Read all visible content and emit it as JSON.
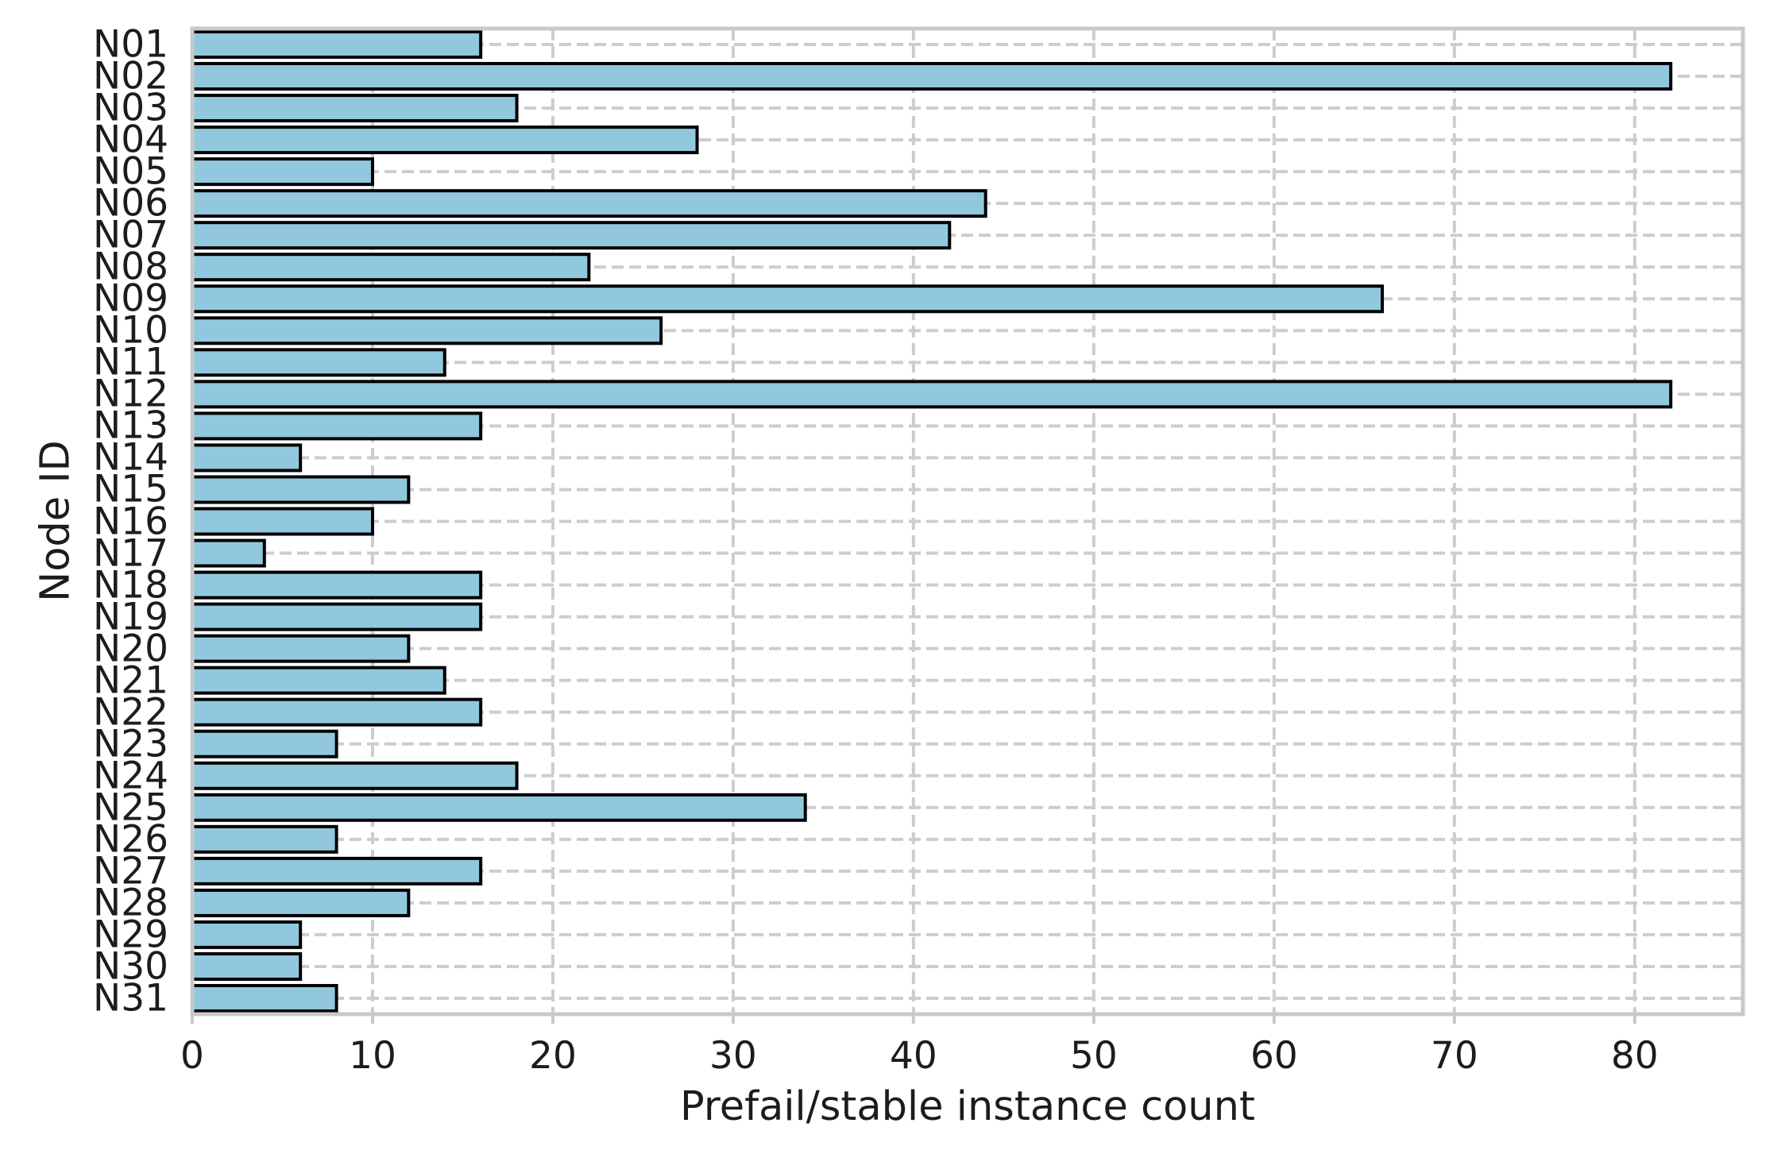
{
  "chart_data": {
    "type": "bar",
    "orientation": "horizontal",
    "title": "",
    "xlabel": "Prefail/stable instance count",
    "ylabel": "Node ID",
    "categories": [
      "N01",
      "N02",
      "N03",
      "N04",
      "N05",
      "N06",
      "N07",
      "N08",
      "N09",
      "N10",
      "N11",
      "N12",
      "N13",
      "N14",
      "N15",
      "N16",
      "N17",
      "N18",
      "N19",
      "N20",
      "N21",
      "N22",
      "N23",
      "N24",
      "N25",
      "N26",
      "N27",
      "N28",
      "N29",
      "N30",
      "N31"
    ],
    "values": [
      16,
      82,
      18,
      28,
      10,
      44,
      42,
      22,
      66,
      26,
      14,
      82,
      16,
      6,
      12,
      10,
      4,
      16,
      16,
      12,
      14,
      16,
      8,
      18,
      34,
      8,
      16,
      12,
      6,
      6,
      8
    ],
    "xticks": [
      0,
      10,
      20,
      30,
      40,
      50,
      60,
      70,
      80
    ],
    "xlim": [
      0,
      86
    ],
    "grid": "dashed-both-axes",
    "legend_position": "none",
    "colors": {
      "background": "#ffffff",
      "bar_fill": "#92c8de",
      "bar_edge": "#000000",
      "grid": "#cdcdcd",
      "spine": "#c9c9c9",
      "text": "#1c1c1c"
    }
  }
}
